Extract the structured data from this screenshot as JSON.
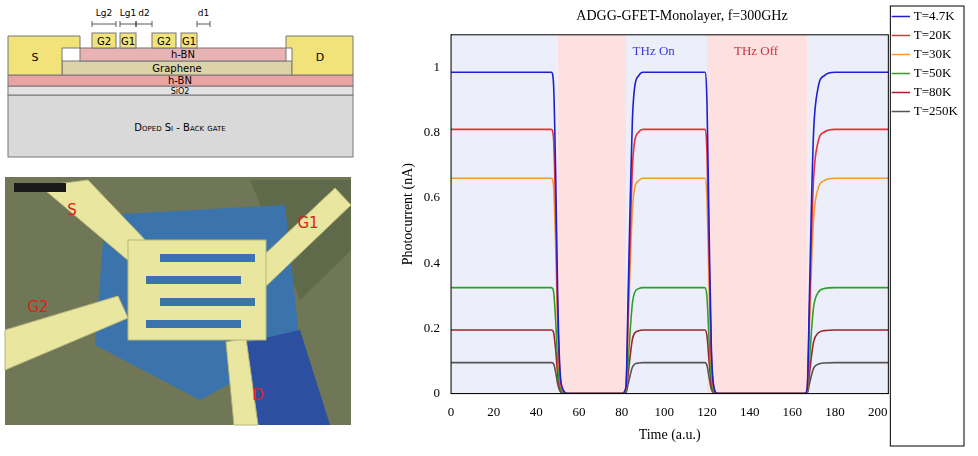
{
  "diagram": {
    "gates": [
      "G2",
      "G1",
      "G2",
      "G1"
    ],
    "dimensions": [
      "Lg2",
      "Lg1",
      "d2",
      "d1"
    ],
    "contacts": [
      "S",
      "D"
    ],
    "layers": [
      "h-BN",
      "Graphene",
      "h-BN",
      "SiO2",
      "Doped Si - Back gate"
    ]
  },
  "micrograph": {
    "labels": [
      "S",
      "G1",
      "G2",
      "D"
    ]
  },
  "chart_data": {
    "type": "line",
    "title": "ADGG-GFET-Monolayer, f=300GHz",
    "x_label": "Time (a.u.)",
    "y_label": "Photocurrent (nA)",
    "x": [
      0,
      10,
      20,
      30,
      40,
      47,
      48,
      49,
      50,
      51,
      52,
      55,
      60,
      70,
      80,
      82,
      83,
      84,
      85,
      86,
      88,
      90,
      100,
      110,
      119,
      120,
      121,
      122,
      123,
      125,
      130,
      140,
      150,
      160,
      166,
      167,
      168,
      169,
      170,
      172,
      175,
      180,
      190,
      200,
      205
    ],
    "series": [
      {
        "name": "T=4.7K",
        "color": "#1f1fd0",
        "values": [
          0.985,
          0.985,
          0.985,
          0.985,
          0.985,
          0.985,
          0.955,
          0.69,
          0.296,
          0.079,
          0.02,
          0,
          0,
          0,
          0,
          0.02,
          0.296,
          0.591,
          0.837,
          0.936,
          0.975,
          0.985,
          0.985,
          0.985,
          0.985,
          0.887,
          0.493,
          0.148,
          0.03,
          0,
          0,
          0,
          0,
          0,
          0,
          0.02,
          0.296,
          0.591,
          0.808,
          0.936,
          0.975,
          0.985,
          0.985,
          0.985,
          0.985
        ]
      },
      {
        "name": "T=20K",
        "color": "#e8303a",
        "values": [
          0.81,
          0.81,
          0.81,
          0.81,
          0.81,
          0.81,
          0.786,
          0.567,
          0.243,
          0.065,
          0.016,
          0,
          0,
          0,
          0,
          0.016,
          0.243,
          0.486,
          0.689,
          0.77,
          0.802,
          0.81,
          0.81,
          0.81,
          0.81,
          0.729,
          0.405,
          0.122,
          0.024,
          0,
          0,
          0,
          0,
          0,
          0,
          0.016,
          0.243,
          0.486,
          0.664,
          0.77,
          0.802,
          0.81,
          0.81,
          0.81,
          0.81
        ]
      },
      {
        "name": "T=30K",
        "color": "#f59a35",
        "values": [
          0.66,
          0.66,
          0.66,
          0.66,
          0.66,
          0.66,
          0.64,
          0.462,
          0.198,
          0.053,
          0.013,
          0,
          0,
          0,
          0,
          0.013,
          0.198,
          0.396,
          0.561,
          0.627,
          0.653,
          0.66,
          0.66,
          0.66,
          0.66,
          0.594,
          0.33,
          0.099,
          0.02,
          0,
          0,
          0,
          0,
          0,
          0,
          0.013,
          0.198,
          0.396,
          0.541,
          0.627,
          0.653,
          0.66,
          0.66,
          0.66,
          0.66
        ]
      },
      {
        "name": "T=50K",
        "color": "#2ca02c",
        "values": [
          0.325,
          0.325,
          0.325,
          0.325,
          0.325,
          0.325,
          0.315,
          0.228,
          0.098,
          0.026,
          0.007,
          0,
          0,
          0,
          0,
          0.007,
          0.098,
          0.195,
          0.276,
          0.309,
          0.322,
          0.325,
          0.325,
          0.325,
          0.325,
          0.293,
          0.163,
          0.049,
          0.01,
          0,
          0,
          0,
          0,
          0,
          0,
          0.007,
          0.098,
          0.195,
          0.267,
          0.309,
          0.322,
          0.325,
          0.325,
          0.325,
          0.325
        ]
      },
      {
        "name": "T=80K",
        "color": "#a0232e",
        "values": [
          0.195,
          0.195,
          0.195,
          0.195,
          0.195,
          0.195,
          0.189,
          0.137,
          0.059,
          0.016,
          0.004,
          0,
          0,
          0,
          0,
          0.004,
          0.059,
          0.117,
          0.166,
          0.185,
          0.193,
          0.195,
          0.195,
          0.195,
          0.195,
          0.176,
          0.098,
          0.029,
          0.006,
          0,
          0,
          0,
          0,
          0,
          0,
          0.004,
          0.059,
          0.117,
          0.16,
          0.185,
          0.193,
          0.195,
          0.195,
          0.195,
          0.195
        ]
      },
      {
        "name": "T=250K",
        "color": "#555555",
        "values": [
          0.095,
          0.095,
          0.095,
          0.095,
          0.095,
          0.095,
          0.092,
          0.067,
          0.029,
          0.008,
          0.002,
          0,
          0,
          0,
          0,
          0.002,
          0.029,
          0.057,
          0.081,
          0.09,
          0.094,
          0.095,
          0.095,
          0.095,
          0.095,
          0.086,
          0.048,
          0.014,
          0.003,
          0,
          0,
          0,
          0,
          0,
          0,
          0.002,
          0.029,
          0.057,
          0.078,
          0.09,
          0.094,
          0.095,
          0.095,
          0.095,
          0.095
        ]
      }
    ],
    "xlim": [
      0,
      205
    ],
    "xticks": [
      0,
      20,
      40,
      60,
      80,
      100,
      120,
      140,
      160,
      180,
      200
    ],
    "ylim": [
      0,
      1.1
    ],
    "yticks": [
      0,
      0.2,
      0.4,
      0.6,
      0.8,
      1
    ],
    "grid": false,
    "legend": "right",
    "regions": [
      {
        "x": [
          0,
          50
        ],
        "color": "#eceefa"
      },
      {
        "x": [
          50,
          82
        ],
        "color": "#fde0e0"
      },
      {
        "x": [
          82,
          120
        ],
        "color": "#eceefa"
      },
      {
        "x": [
          120,
          167
        ],
        "color": "#fde0e0"
      },
      {
        "x": [
          167,
          205
        ],
        "color": "#eceefa"
      }
    ],
    "annotations": [
      {
        "text": "THz On",
        "x": 95,
        "y": 1.05,
        "color": "#3b3bd6"
      },
      {
        "text": "THz Off",
        "x": 143,
        "y": 1.05,
        "color": "#d0303a"
      }
    ]
  }
}
